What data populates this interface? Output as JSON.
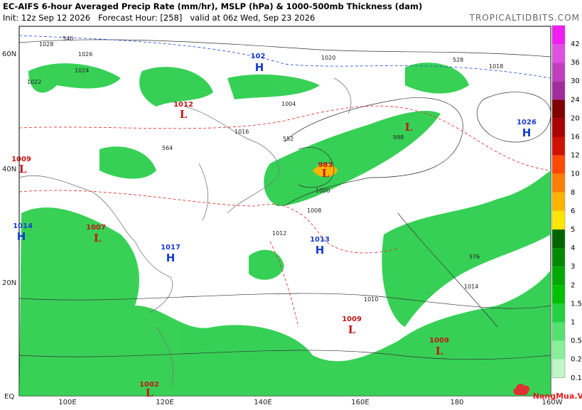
{
  "header": {
    "title": "EC-AIFS 6-hour Averaged Precip Rate (mm/hr), MSLP (hPa) & 1000-500mb Thickness (dam)",
    "subtitle": "Init: 12z Sep 12 2026   Forecast Hour: [258]   valid at 06z Wed, Sep 23 2026",
    "site": "TROPICALTIDBITS.COM"
  },
  "axes": {
    "lat": [
      "60N",
      "40N",
      "20N",
      "EQ"
    ],
    "lon": [
      "100E",
      "120E",
      "140E",
      "160E",
      "180",
      "160W"
    ]
  },
  "centers": [
    {
      "letter": "H",
      "value": "102"
    },
    {
      "letter": "L",
      "value": "1012"
    },
    {
      "letter": "L",
      "value": "1009"
    },
    {
      "letter": "L",
      "value": "983"
    },
    {
      "letter": "L"
    },
    {
      "letter": "H",
      "value": "1026"
    },
    {
      "letter": "H",
      "value": "1014"
    },
    {
      "letter": "L",
      "value": "1007"
    },
    {
      "letter": "H",
      "value": "1017"
    },
    {
      "letter": "H",
      "value": "1013"
    },
    {
      "letter": "L",
      "value": "1009"
    },
    {
      "letter": "L",
      "value": "1009"
    },
    {
      "letter": "L",
      "value": "1002"
    }
  ],
  "contour_labels": [
    "1028",
    "1026",
    "1024",
    "1022",
    "1020",
    "1016",
    "1012",
    "1010",
    "1008",
    "1004",
    "1000",
    "998",
    "1018",
    "1014",
    "564",
    "576",
    "552",
    "540",
    "528"
  ],
  "colorbar": {
    "ticks": [
      42,
      36,
      30,
      24,
      20,
      16,
      12,
      10,
      8,
      6,
      5,
      4,
      3,
      2,
      1.5,
      1,
      0.5,
      0.25,
      0.1
    ],
    "colors": [
      "#f01ef0",
      "#e050e0",
      "#c040c0",
      "#a02ca0",
      "#800000",
      "#a80000",
      "#d01000",
      "#ff4800",
      "#ff8000",
      "#ffb400",
      "#ffe600",
      "#006400",
      "#008a00",
      "#00a800",
      "#00c000",
      "#22d040",
      "#55e070",
      "#88ee99",
      "#bff7c6"
    ]
  },
  "watermark": "NangMua.VN"
}
